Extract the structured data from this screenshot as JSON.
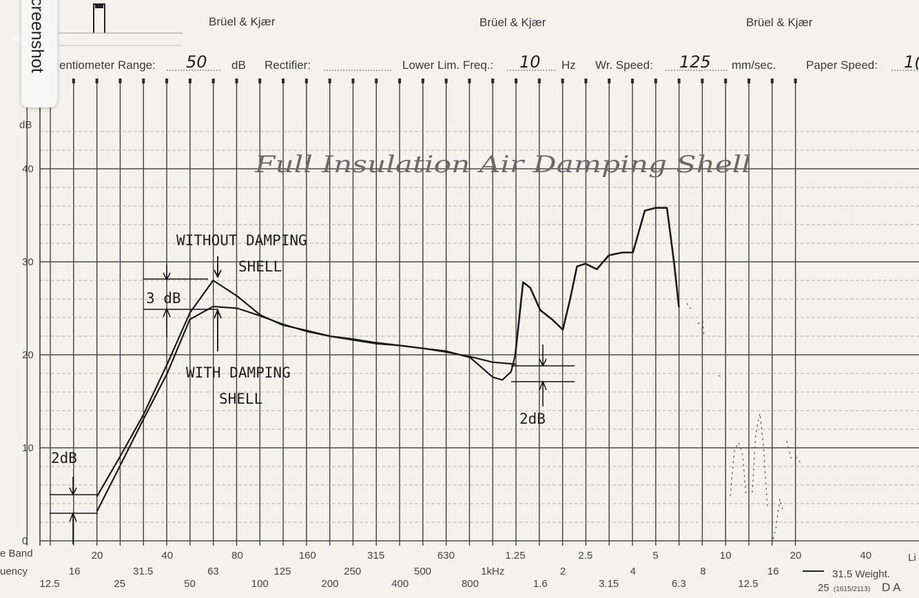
{
  "header": {
    "brands": [
      "Brüel & Kjær",
      "Brüel & Kjær",
      "Brüel & Kjær"
    ],
    "potentiometer_label": "entiometer Range:",
    "potentiometer_value": "50",
    "potentiometer_unit": "dB",
    "rectifier_label": "Rectifier:",
    "lower_lim_label": "Lower Lim. Freq.:",
    "lower_lim_value": "10",
    "lower_lim_unit": "Hz",
    "wr_speed_label": "Wr. Speed:",
    "wr_speed_value": "125",
    "wr_speed_unit": "mm/sec.",
    "paper_speed_label": "Paper Speed:",
    "paper_speed_value": "1("
  },
  "screenshot_tab": {
    "label": "creenshot"
  },
  "handwritten_title": "Full Insulation Air Damping Shell",
  "footer": {
    "band_label": "e Band",
    "frequency_label": "uency",
    "weight_label": "31.5  Weight.",
    "weight_right": "Li",
    "code": "25",
    "code_small": "(1615/2113)",
    "code_letters": "D  A"
  },
  "annotations": {
    "without_line1": "WITHOUT  DAMPING",
    "without_line2": "SHELL",
    "with_line1": "WITH  DAMPING",
    "with_line2": "SHELL",
    "three_db": "3 dB",
    "two_db_left": "2dB",
    "two_db_right": "2dB"
  },
  "chart_data": {
    "type": "line",
    "title": "",
    "xlabel": "",
    "ylabel": "dB",
    "x_scale": "log (1/3-octave bands)",
    "grid": true,
    "ylim": [
      0,
      45
    ],
    "yticks": [
      0,
      10,
      20,
      30,
      40
    ],
    "xlim": [
      10,
      20000
    ],
    "band_upper_labels": [
      "20",
      "40",
      "80",
      "160",
      "315",
      "630",
      "1.25",
      "2.5",
      "5",
      "10",
      "20",
      "40"
    ],
    "band_lower_labels": [
      "12.5",
      "16",
      "25",
      "31.5",
      "50",
      "63",
      "100",
      "125",
      "200",
      "250",
      "400",
      "500",
      "800",
      "1kHz",
      "1.6",
      "2",
      "3.15",
      "4",
      "6.3",
      "8",
      "12.5",
      "16"
    ],
    "series": [
      {
        "name": "WITHOUT DAMPING SHELL",
        "x": [
          20,
          25,
          31.5,
          40,
          50,
          63,
          80,
          100,
          125,
          160,
          200,
          250,
          315,
          400,
          500,
          630,
          800,
          900,
          1000,
          1100,
          1200,
          1250
        ],
        "y": [
          4.8,
          9.0,
          13.5,
          19.0,
          24.5,
          28.0,
          26.3,
          24.3,
          23.2,
          22.6,
          22.0,
          21.6,
          21.2,
          21.0,
          20.7,
          20.4,
          19.7,
          18.6,
          17.6,
          17.3,
          18.2,
          20.0
        ]
      },
      {
        "name": "WITH DAMPING SHELL",
        "x": [
          20,
          25,
          31.5,
          40,
          50,
          63,
          80,
          100,
          125,
          160,
          200,
          250,
          315,
          400,
          500,
          630,
          800,
          1000,
          1250
        ],
        "y": [
          3.2,
          8.0,
          13.0,
          18.0,
          23.8,
          25.2,
          25.0,
          24.2,
          23.3,
          22.5,
          22.0,
          21.7,
          21.3,
          21.0,
          20.7,
          20.3,
          19.8,
          19.2,
          19.0
        ]
      },
      {
        "name": "",
        "x": [
          1250,
          1350,
          1450,
          1600,
          1800,
          2000,
          2150,
          2300,
          2500,
          2800,
          3150,
          3600,
          4000,
          4500,
          5000,
          5600,
          6000,
          6300
        ],
        "y": [
          20.0,
          27.8,
          27.2,
          24.8,
          23.8,
          22.7,
          26.0,
          29.5,
          29.8,
          29.2,
          30.7,
          31.0,
          31.0,
          35.5,
          35.8,
          35.8,
          30.0,
          25.2
        ]
      }
    ]
  }
}
